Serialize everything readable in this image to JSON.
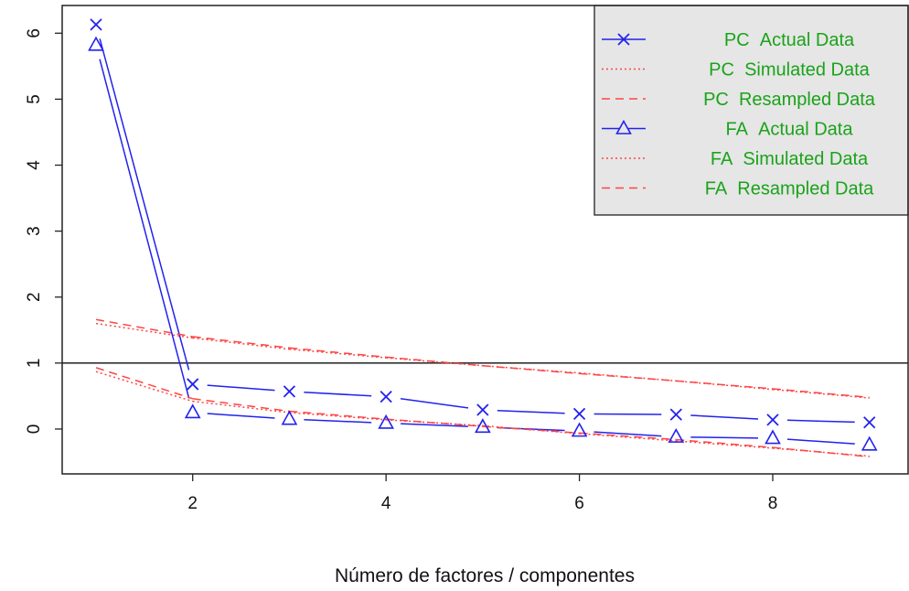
{
  "chart_data": {
    "type": "line",
    "title": "",
    "xlabel": "Número de factores / componentes",
    "ylabel": "",
    "xlim": [
      0.65,
      9.4
    ],
    "ylim": [
      -0.68,
      6.42
    ],
    "xticks": [
      "2",
      "4",
      "6",
      "8"
    ],
    "xtick_values": [
      2,
      4,
      6,
      8
    ],
    "yticks": [
      "0",
      "1",
      "2",
      "3",
      "4",
      "5",
      "6"
    ],
    "ytick_values": [
      0,
      1,
      2,
      3,
      4,
      5,
      6
    ],
    "hline": 1,
    "grid": false,
    "legend_position": "top-right",
    "legend_text_color": "#1aa31a",
    "x": [
      1,
      2,
      3,
      4,
      5,
      6,
      7,
      8,
      9
    ],
    "series": [
      {
        "name": "PC  Actual Data",
        "color": "#2222ee",
        "style": "solid",
        "marker": "cross",
        "values": [
          6.13,
          0.68,
          0.57,
          0.49,
          0.29,
          0.23,
          0.22,
          0.14,
          0.1
        ]
      },
      {
        "name": "PC  Simulated Data",
        "color": "#ff4444",
        "style": "dotted",
        "marker": "none",
        "values": [
          1.6,
          1.38,
          1.21,
          1.08,
          0.96,
          0.85,
          0.73,
          0.6,
          0.47
        ]
      },
      {
        "name": "PC  Resampled Data",
        "color": "#ff4444",
        "style": "dashed",
        "marker": "none",
        "values": [
          1.66,
          1.4,
          1.23,
          1.09,
          0.96,
          0.84,
          0.73,
          0.61,
          0.48
        ]
      },
      {
        "name": "FA  Actual Data",
        "color": "#2222ee",
        "style": "solid",
        "marker": "triangle",
        "values": [
          5.82,
          0.25,
          0.15,
          0.09,
          0.03,
          -0.03,
          -0.12,
          -0.14,
          -0.24
        ]
      },
      {
        "name": "FA  Simulated Data",
        "color": "#ff4444",
        "style": "dotted",
        "marker": "none",
        "values": [
          0.87,
          0.42,
          0.25,
          0.14,
          0.05,
          -0.07,
          -0.18,
          -0.29,
          -0.41
        ]
      },
      {
        "name": "FA  Resampled Data",
        "color": "#ff4444",
        "style": "dashed",
        "marker": "none",
        "values": [
          0.93,
          0.46,
          0.27,
          0.15,
          0.04,
          -0.06,
          -0.16,
          -0.28,
          -0.42
        ]
      }
    ]
  }
}
